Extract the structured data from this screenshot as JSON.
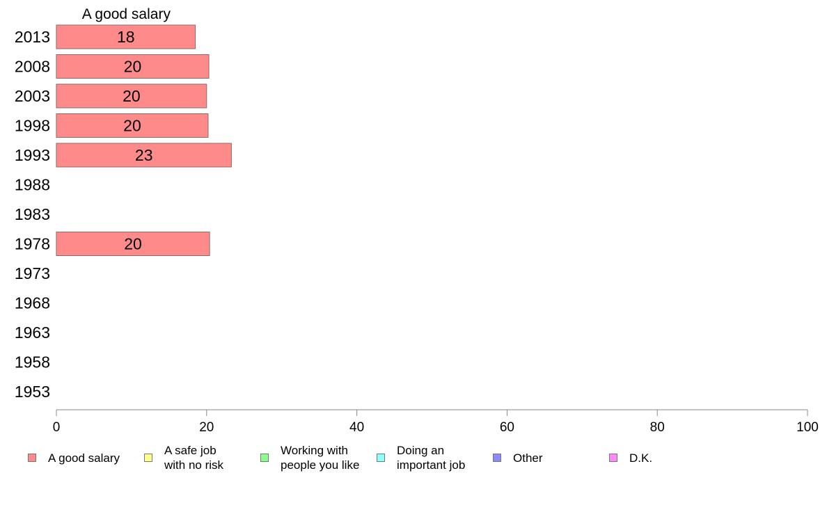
{
  "chart_data": {
    "type": "bar",
    "orientation": "horizontal",
    "title": "A good salary",
    "categories": [
      "2013",
      "2008",
      "2003",
      "1998",
      "1993",
      "1988",
      "1983",
      "1978",
      "1973",
      "1968",
      "1963",
      "1958",
      "1953"
    ],
    "series": [
      {
        "name": "A good salary",
        "color": "#ff8a8a",
        "values": [
          18.5,
          20.3,
          20.0,
          20.2,
          23.3,
          null,
          null,
          20.4,
          null,
          null,
          null,
          null,
          null
        ],
        "labels": [
          "18",
          "20",
          "20",
          "20",
          "23",
          "",
          "",
          "20",
          "",
          "",
          "",
          "",
          ""
        ]
      }
    ],
    "xlim": [
      0,
      100
    ],
    "xticks": [
      0,
      20,
      40,
      60,
      80,
      100
    ],
    "grid": false,
    "legend_position": "bottom"
  },
  "legend": [
    {
      "label": "A good salary",
      "color": "#ff8a8a"
    },
    {
      "label": "A safe job\nwith no risk",
      "color": "#ffff8a"
    },
    {
      "label": "Working with\npeople you like",
      "color": "#8aff8a"
    },
    {
      "label": "Doing an\nimportant job",
      "color": "#8affff"
    },
    {
      "label": "Other",
      "color": "#8a8aff"
    },
    {
      "label": "D.K.",
      "color": "#ff8aff"
    }
  ]
}
